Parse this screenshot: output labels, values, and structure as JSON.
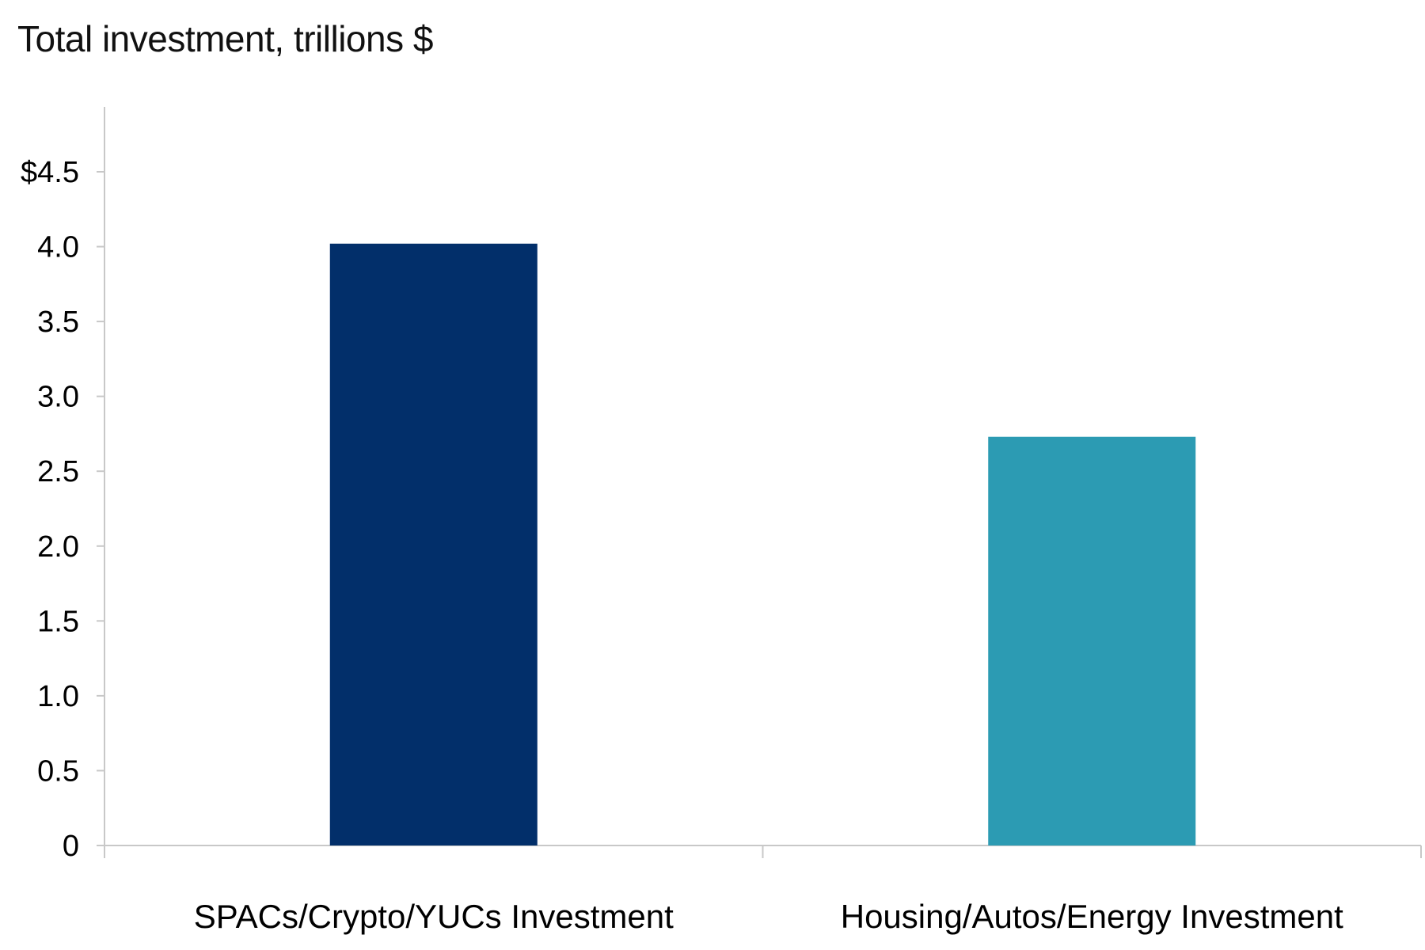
{
  "chart_data": {
    "type": "bar",
    "title": "Total investment, trillions $",
    "categories": [
      "SPACs/Crypto/YUCs Investment",
      "Housing/Autos/Energy Investment"
    ],
    "values": [
      4.02,
      2.73
    ],
    "bar_colors": [
      "#022F6A",
      "#2C9BB3"
    ],
    "ylim": [
      0,
      4.5
    ],
    "yticks": [
      0,
      0.5,
      1.0,
      1.5,
      2.0,
      2.5,
      3.0,
      3.5,
      4.0,
      4.5
    ],
    "ytick_labels": [
      "0",
      "0.5",
      "1.0",
      "1.5",
      "2.0",
      "2.5",
      "3.0",
      "3.5",
      "4.0",
      "$4.5"
    ],
    "xlabel": "",
    "ylabel": "",
    "grid": false,
    "legend": "none",
    "axis_color": "#C8C8C8"
  }
}
